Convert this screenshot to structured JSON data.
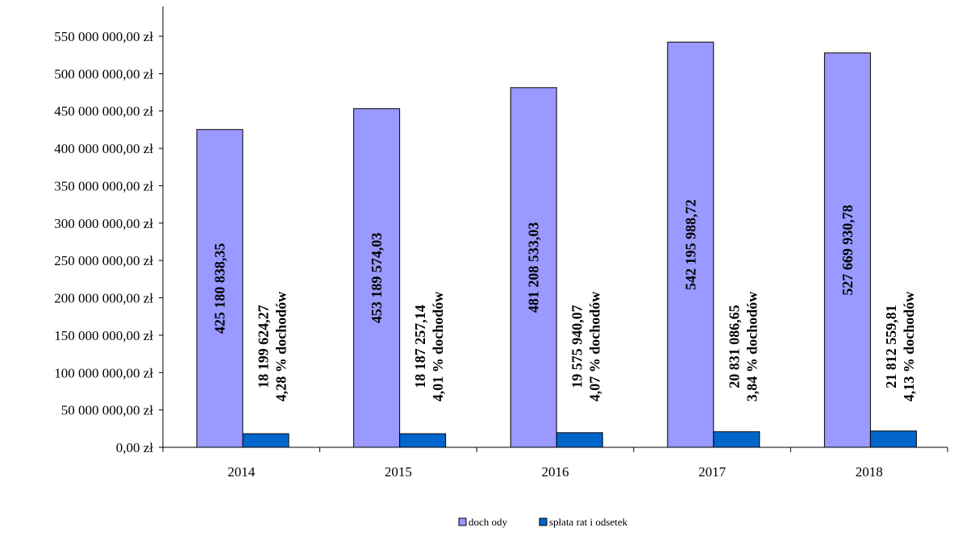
{
  "chart_data": {
    "type": "bar",
    "categories": [
      "2014",
      "2015",
      "2016",
      "2017",
      "2018"
    ],
    "series": [
      {
        "name": "doch ody",
        "color": "#9999ff",
        "values": [
          425180838.35,
          453189574.03,
          481208533.03,
          542195988.72,
          527669930.78
        ],
        "labels": [
          [
            "425 180 838,35"
          ],
          [
            "453 189 574,03"
          ],
          [
            "481 208 533,03"
          ],
          [
            "542 195 988,72"
          ],
          [
            "527 669 930,78"
          ]
        ]
      },
      {
        "name": "spłata rat i odsetek",
        "color": "#0066cc",
        "values": [
          18199624.27,
          18187257.14,
          19575940.07,
          20831086.65,
          21812559.81
        ],
        "labels": [
          [
            "18 199 624,27",
            "4,28 % dochodów"
          ],
          [
            "18 187 257,14",
            "4,01 % dochodów"
          ],
          [
            "19 575 940,07",
            "4,07 % dochodów"
          ],
          [
            "20 831 086,65",
            "3,84 % dochodów"
          ],
          [
            "21 812 559,81",
            "4,13 % dochodów"
          ]
        ]
      }
    ],
    "ylim": [
      0,
      550000000
    ],
    "yticks": [
      "0,00 zł",
      "50 000 000,00 zł",
      "100 000 000,00 zł",
      "150 000 000,00 zł",
      "200 000 000,00 zł",
      "250 000 000,00 zł",
      "300 000 000,00 zł",
      "350 000 000,00 zł",
      "400 000 000,00 zł",
      "450 000 000,00 zł",
      "500 000 000,00 zł",
      "550 000 000,00 zł"
    ],
    "grid": false,
    "legend": "bottom-center"
  }
}
